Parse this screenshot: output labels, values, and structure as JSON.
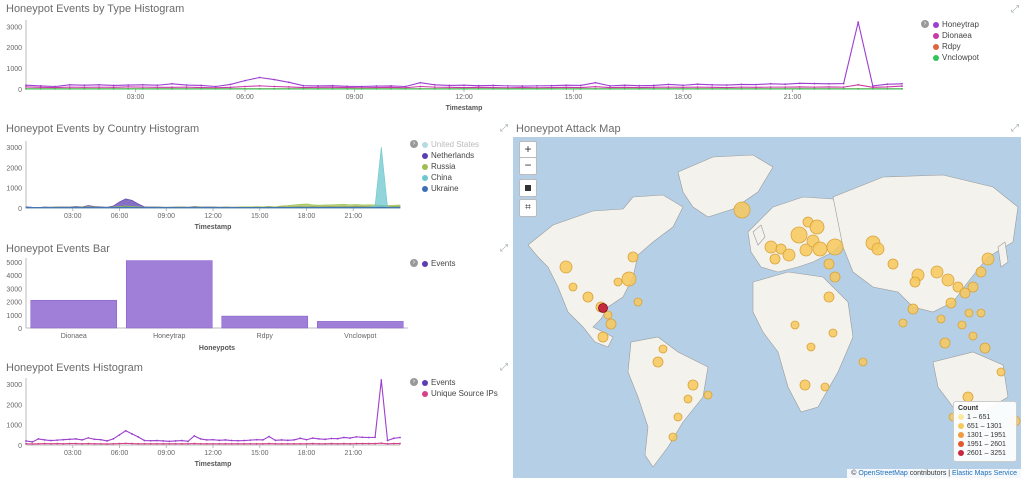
{
  "panels": {
    "type_histogram": {
      "title": "Honeypot Events by Type Histogram",
      "xlabel": "Timestamp",
      "legend": [
        "Honeytrap",
        "Dionaea",
        "Rdpy",
        "Vnclowpot"
      ]
    },
    "country_histogram": {
      "title": "Honeypot Events by Country Histogram",
      "xlabel": "Timestamp",
      "legend": [
        "United States",
        "Netherlands",
        "Russia",
        "China",
        "Ukraine"
      ]
    },
    "events_bar": {
      "title": "Honeypot Events Bar",
      "xlabel": "Honeypots",
      "legend": [
        "Events"
      ]
    },
    "events_histogram": {
      "title": "Honeypot Events Histogram",
      "xlabel": "Timestamp",
      "legend": [
        "Events",
        "Unique Source IPs"
      ]
    },
    "attack_map": {
      "title": "Honeypot Attack Map",
      "zoom_in": "+",
      "zoom_out": "−",
      "count_title": "Count",
      "count_ranges": [
        "1 – 651",
        "651 – 1301",
        "1301 – 1951",
        "1951 – 2601",
        "2601 – 3251"
      ],
      "attribution_prefix": "©",
      "attribution_osm": "OpenStreetMap",
      "attribution_mid": " contributors | ",
      "attribution_ems": "Elastic Maps Service"
    }
  },
  "colors": {
    "honeytrap": "#9c3fcf",
    "dionaea": "#c83aa8",
    "rdpy": "#e0633b",
    "vnclowpot": "#34c55a",
    "united_states": "#b7dbe3",
    "netherlands": "#5b3fb0",
    "russia": "#9ebf4e",
    "china": "#6cc7cf",
    "ukraine": "#3c6fb5",
    "events": "#a07fd8",
    "unique_ips": "#d6428a",
    "map_water": "#b5d0e6",
    "map_land": "#f4f2ec",
    "map_marker": "#f7c95c",
    "map_marker_max": "#c8283f"
  },
  "chart_data": [
    {
      "type": "line",
      "title": "Honeypot Events by Type Histogram",
      "xlabel": "Timestamp",
      "x_ticks": [
        "03:00",
        "06:00",
        "09:00",
        "12:00",
        "15:00",
        "18:00",
        "21:00"
      ],
      "y_ticks": [
        0,
        1000,
        2000,
        3000
      ],
      "ylim": [
        0,
        3300
      ],
      "series": [
        {
          "name": "Honeytrap",
          "values": [
            180,
            150,
            120,
            200,
            180,
            200,
            170,
            190,
            200,
            180,
            250,
            190,
            170,
            120,
            220,
            400,
            550,
            450,
            320,
            160,
            150,
            160,
            130,
            120,
            140,
            150,
            120,
            300,
            200,
            170,
            180,
            160,
            170,
            150,
            140,
            150,
            160,
            180,
            170,
            300,
            150,
            180,
            160,
            170,
            220,
            180,
            230,
            200,
            190,
            220,
            210,
            250,
            230,
            270,
            260,
            250,
            260,
            3200,
            150,
            230,
            250
          ]
        },
        {
          "name": "Dionaea",
          "values": [
            100,
            80,
            70,
            90,
            80,
            90,
            80,
            100,
            90,
            80,
            80,
            90,
            70,
            60,
            80,
            120,
            150,
            120,
            100,
            70,
            80,
            80,
            70,
            60,
            70,
            80,
            60,
            120,
            90,
            80,
            70,
            80,
            70,
            60,
            70,
            60,
            70,
            80,
            70,
            110,
            70,
            80,
            70,
            80,
            90,
            80,
            90,
            80,
            70,
            90,
            80,
            90,
            90,
            100,
            90,
            100,
            90,
            200,
            80,
            100,
            140
          ]
        },
        {
          "name": "Rdpy",
          "values": [
            10,
            10,
            10,
            10,
            10,
            10,
            10,
            10,
            10,
            10,
            10,
            10,
            10,
            10,
            10,
            10,
            10,
            10,
            10,
            10,
            10,
            10,
            10,
            10,
            10,
            10,
            10,
            10,
            10,
            10,
            10,
            10,
            10,
            10,
            10,
            10,
            10,
            10,
            10,
            10,
            10,
            10,
            10,
            10,
            10,
            10,
            10,
            10,
            10,
            10,
            10,
            10,
            10,
            10,
            10,
            10,
            10,
            10,
            10,
            10,
            10
          ]
        },
        {
          "name": "Vnclowpot",
          "values": [
            5,
            5,
            5,
            5,
            5,
            5,
            5,
            5,
            5,
            5,
            5,
            5,
            5,
            5,
            5,
            5,
            5,
            5,
            5,
            5,
            5,
            5,
            5,
            5,
            5,
            5,
            5,
            5,
            5,
            5,
            5,
            5,
            5,
            5,
            5,
            5,
            5,
            5,
            5,
            5,
            5,
            5,
            5,
            5,
            5,
            5,
            5,
            5,
            5,
            5,
            5,
            5,
            5,
            5,
            5,
            5,
            5,
            5,
            5,
            5,
            5
          ]
        }
      ]
    },
    {
      "type": "area",
      "title": "Honeypot Events by Country Histogram",
      "xlabel": "Timestamp",
      "x_ticks": [
        "03:00",
        "06:00",
        "09:00",
        "12:00",
        "15:00",
        "18:00",
        "21:00"
      ],
      "y_ticks": [
        0,
        1000,
        2000,
        3000
      ],
      "ylim": [
        0,
        3300
      ],
      "series": [
        {
          "name": "United States",
          "values": [
            0,
            0,
            0,
            0,
            0,
            0,
            0,
            0,
            0,
            0,
            0,
            0,
            0,
            0,
            0,
            0,
            0,
            0,
            0,
            0,
            0,
            0,
            0,
            0,
            0,
            0,
            0,
            0,
            0,
            0,
            0,
            0,
            0,
            0,
            0,
            0,
            0,
            0,
            0,
            0,
            0,
            0,
            0,
            0,
            0,
            0,
            0,
            0,
            0,
            0,
            0,
            0,
            0,
            0,
            0,
            0,
            0,
            0,
            0,
            0,
            0
          ]
        },
        {
          "name": "Netherlands",
          "values": [
            60,
            40,
            30,
            50,
            40,
            60,
            50,
            60,
            70,
            60,
            120,
            80,
            60,
            40,
            100,
            300,
            450,
            380,
            200,
            60,
            50,
            60,
            40,
            40,
            50,
            60,
            40,
            80,
            60,
            50,
            60,
            40,
            50,
            40,
            40,
            50,
            60,
            60,
            50,
            70,
            40,
            60,
            50,
            60,
            70,
            60,
            80,
            60,
            70,
            80,
            70,
            80,
            70,
            90,
            80,
            70,
            80,
            90,
            60,
            70,
            80
          ]
        },
        {
          "name": "Russia",
          "values": [
            40,
            30,
            30,
            40,
            40,
            50,
            40,
            50,
            40,
            50,
            60,
            50,
            40,
            40,
            50,
            80,
            100,
            80,
            60,
            40,
            40,
            50,
            40,
            40,
            50,
            50,
            40,
            60,
            50,
            40,
            50,
            40,
            50,
            40,
            50,
            60,
            60,
            70,
            60,
            80,
            60,
            100,
            120,
            150,
            180,
            200,
            160,
            140,
            150,
            160,
            170,
            180,
            160,
            170,
            150,
            160,
            150,
            140,
            120,
            130,
            150
          ]
        },
        {
          "name": "China",
          "values": [
            20,
            20,
            20,
            20,
            20,
            20,
            20,
            20,
            20,
            20,
            20,
            20,
            20,
            20,
            20,
            20,
            20,
            20,
            20,
            20,
            20,
            20,
            20,
            20,
            20,
            20,
            20,
            20,
            20,
            20,
            20,
            20,
            20,
            20,
            20,
            20,
            20,
            20,
            20,
            20,
            20,
            20,
            20,
            20,
            20,
            20,
            20,
            20,
            20,
            20,
            20,
            20,
            20,
            20,
            20,
            20,
            100,
            3000,
            40,
            30,
            30
          ]
        },
        {
          "name": "Ukraine",
          "values": [
            30,
            30,
            30,
            30,
            30,
            30,
            30,
            30,
            30,
            30,
            30,
            30,
            30,
            30,
            30,
            40,
            50,
            40,
            30,
            30,
            30,
            30,
            30,
            30,
            30,
            30,
            30,
            30,
            30,
            30,
            30,
            30,
            30,
            30,
            30,
            30,
            30,
            30,
            30,
            30,
            30,
            30,
            30,
            30,
            30,
            30,
            30,
            30,
            30,
            30,
            30,
            30,
            30,
            30,
            30,
            30,
            30,
            40,
            30,
            30,
            30
          ]
        }
      ]
    },
    {
      "type": "bar",
      "title": "Honeypot Events Bar",
      "xlabel": "Honeypots",
      "categories": [
        "Dionaea",
        "Honeytrap",
        "Rdpy",
        "Vnclowpot"
      ],
      "values": [
        2100,
        5100,
        900,
        500
      ],
      "y_ticks": [
        0,
        1000,
        2000,
        3000,
        4000,
        5000
      ],
      "ylim": [
        0,
        5300
      ]
    },
    {
      "type": "line",
      "title": "Honeypot Events Histogram",
      "xlabel": "Timestamp",
      "x_ticks": [
        "03:00",
        "06:00",
        "09:00",
        "12:00",
        "15:00",
        "18:00",
        "21:00"
      ],
      "y_ticks": [
        0,
        1000,
        2000,
        3000
      ],
      "ylim": [
        0,
        3300
      ],
      "series": [
        {
          "name": "Events",
          "values": [
            200,
            150,
            300,
            250,
            220,
            240,
            260,
            280,
            300,
            250,
            350,
            280,
            260,
            200,
            300,
            500,
            700,
            550,
            400,
            220,
            210,
            220,
            200,
            180,
            200,
            220,
            180,
            450,
            300,
            250,
            260,
            230,
            250,
            220,
            210,
            220,
            240,
            260,
            250,
            420,
            230,
            250,
            230,
            250,
            330,
            260,
            340,
            300,
            280,
            320,
            310,
            370,
            340,
            400,
            380,
            370,
            380,
            3200,
            220,
            330,
            370
          ]
        },
        {
          "name": "Unique Source IPs",
          "values": [
            60,
            50,
            60,
            70,
            60,
            70,
            60,
            70,
            70,
            60,
            70,
            60,
            60,
            50,
            60,
            70,
            80,
            70,
            60,
            60,
            60,
            60,
            60,
            60,
            60,
            60,
            60,
            70,
            60,
            60,
            60,
            60,
            60,
            60,
            60,
            60,
            60,
            60,
            60,
            70,
            60,
            60,
            60,
            60,
            60,
            60,
            70,
            60,
            60,
            70,
            60,
            70,
            60,
            70,
            70,
            70,
            70,
            90,
            60,
            70,
            70
          ]
        }
      ]
    }
  ]
}
